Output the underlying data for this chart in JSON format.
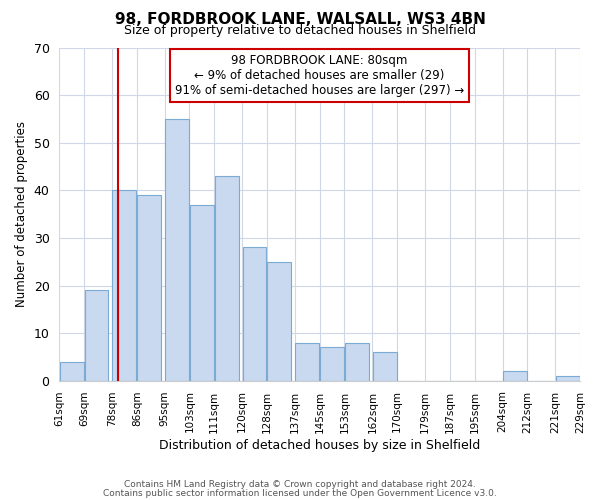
{
  "title": "98, FORDBROOK LANE, WALSALL, WS3 4BN",
  "subtitle": "Size of property relative to detached houses in Shelfield",
  "xlabel": "Distribution of detached houses by size in Shelfield",
  "ylabel": "Number of detached properties",
  "bar_left_edges": [
    61,
    69,
    78,
    86,
    95,
    103,
    111,
    120,
    128,
    137,
    145,
    153,
    162,
    170,
    179,
    187,
    195,
    204,
    212,
    221
  ],
  "bar_heights": [
    4,
    19,
    40,
    39,
    55,
    37,
    43,
    28,
    25,
    8,
    7,
    8,
    6,
    0,
    0,
    0,
    0,
    2,
    0,
    1
  ],
  "bin_width": 8,
  "bar_color": "#c8d9f0",
  "bar_edge_color": "#7baad4",
  "reference_line_x": 80,
  "reference_line_color": "#cc0000",
  "ylim": [
    0,
    70
  ],
  "yticks": [
    0,
    10,
    20,
    30,
    40,
    50,
    60,
    70
  ],
  "x_tick_labels": [
    "61sqm",
    "69sqm",
    "78sqm",
    "86sqm",
    "95sqm",
    "103sqm",
    "111sqm",
    "120sqm",
    "128sqm",
    "137sqm",
    "145sqm",
    "153sqm",
    "162sqm",
    "170sqm",
    "179sqm",
    "187sqm",
    "195sqm",
    "204sqm",
    "212sqm",
    "221sqm",
    "229sqm"
  ],
  "annotation_line1": "98 FORDBROOK LANE: 80sqm",
  "annotation_line2": "← 9% of detached houses are smaller (29)",
  "annotation_line3": "91% of semi-detached houses are larger (297) →",
  "footer_line1": "Contains HM Land Registry data © Crown copyright and database right 2024.",
  "footer_line2": "Contains public sector information licensed under the Open Government Licence v3.0.",
  "background_color": "#ffffff",
  "grid_color": "#d0d8e8"
}
